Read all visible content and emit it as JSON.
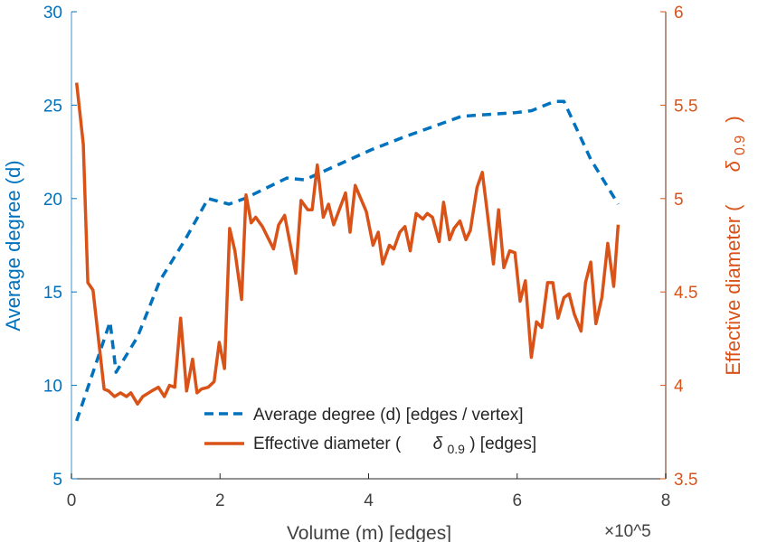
{
  "chart_data": {
    "type": "line",
    "title": "",
    "xlabel": "Volume (m) [edges]",
    "x_multiplier": "×10^5",
    "x_multiplier_base": "×10",
    "x_multiplier_exp": "5",
    "xlim": [
      0,
      8
    ],
    "xticks": [
      0,
      2,
      4,
      6,
      8
    ],
    "ylabel_left": "Average degree (d)",
    "ylim_left": [
      5,
      30
    ],
    "yticks_left": [
      5,
      10,
      15,
      20,
      25,
      30
    ],
    "ylabel_right_prefix": "Effective diameter (",
    "ylabel_right_symbol": "δ",
    "ylabel_right_sub": "0.9",
    "ylabel_right_suffix": ")",
    "ylim_right": [
      3.5,
      6
    ],
    "yticks_right": [
      3.5,
      4,
      4.5,
      5,
      5.5,
      6
    ],
    "grid": false,
    "legend_position": "bottom-center",
    "series": [
      {
        "name": "Average degree (d) [edges / vertex]",
        "axis": "left",
        "color": "#0072BD",
        "style": "dashed",
        "x": [
          0.07,
          0.52,
          0.6,
          0.89,
          1.19,
          1.53,
          1.84,
          2.12,
          2.33,
          2.9,
          3.14,
          4.03,
          4.48,
          5.25,
          5.61,
          5.98,
          6.19,
          6.5,
          6.63,
          6.99,
          7.36
        ],
        "y": [
          8.1,
          13.4,
          10.7,
          12.6,
          15.6,
          17.8,
          20.0,
          19.7,
          20.0,
          21.1,
          21.0,
          22.6,
          23.3,
          24.4,
          24.5,
          24.6,
          24.7,
          25.2,
          25.2,
          22.1,
          19.7
        ]
      },
      {
        "name_prefix": "Effective diameter (",
        "name_symbol": "δ",
        "name_sub": "0.9",
        "name_suffix": ") [edges]",
        "axis": "right",
        "color": "#D95319",
        "style": "solid",
        "x": [
          0.07,
          0.16,
          0.22,
          0.29,
          0.44,
          0.5,
          0.58,
          0.66,
          0.74,
          0.8,
          0.89,
          0.96,
          1.08,
          1.17,
          1.25,
          1.32,
          1.39,
          1.47,
          1.55,
          1.63,
          1.69,
          1.75,
          1.84,
          1.92,
          1.99,
          2.06,
          2.13,
          2.2,
          2.29,
          2.35,
          2.42,
          2.48,
          2.57,
          2.72,
          2.79,
          2.87,
          3.02,
          3.09,
          3.18,
          3.24,
          3.31,
          3.39,
          3.46,
          3.53,
          3.69,
          3.75,
          3.82,
          3.97,
          4.06,
          4.13,
          4.19,
          4.28,
          4.34,
          4.42,
          4.49,
          4.56,
          4.64,
          4.73,
          4.79,
          4.86,
          4.95,
          5.01,
          5.09,
          5.15,
          5.23,
          5.31,
          5.37,
          5.46,
          5.53,
          5.59,
          5.68,
          5.75,
          5.82,
          5.9,
          5.97,
          6.04,
          6.11,
          6.19,
          6.26,
          6.33,
          6.41,
          6.48,
          6.55,
          6.63,
          6.7,
          6.77,
          6.86,
          6.92,
          6.99,
          7.06,
          7.14,
          7.22,
          7.3,
          7.36
        ],
        "y": [
          5.62,
          5.29,
          4.55,
          4.51,
          3.98,
          3.97,
          3.94,
          3.96,
          3.94,
          3.96,
          3.9,
          3.94,
          3.97,
          3.99,
          3.94,
          4.0,
          3.99,
          4.36,
          3.97,
          4.14,
          3.96,
          3.98,
          3.99,
          4.02,
          4.23,
          4.09,
          4.84,
          4.72,
          4.46,
          5.02,
          4.87,
          4.9,
          4.85,
          4.73,
          4.86,
          4.91,
          4.6,
          4.99,
          4.94,
          4.94,
          5.18,
          4.9,
          4.97,
          4.86,
          5.03,
          4.82,
          5.07,
          4.93,
          4.75,
          4.82,
          4.65,
          4.75,
          4.73,
          4.82,
          4.85,
          4.72,
          4.92,
          4.89,
          4.92,
          4.9,
          4.77,
          4.98,
          4.78,
          4.84,
          4.88,
          4.78,
          4.83,
          5.06,
          5.14,
          4.95,
          4.65,
          4.94,
          4.63,
          4.72,
          4.71,
          4.45,
          4.56,
          4.15,
          4.34,
          4.31,
          4.55,
          4.55,
          4.36,
          4.47,
          4.49,
          4.38,
          4.29,
          4.55,
          4.66,
          4.33,
          4.47,
          4.76,
          4.53,
          4.86
        ]
      }
    ]
  }
}
